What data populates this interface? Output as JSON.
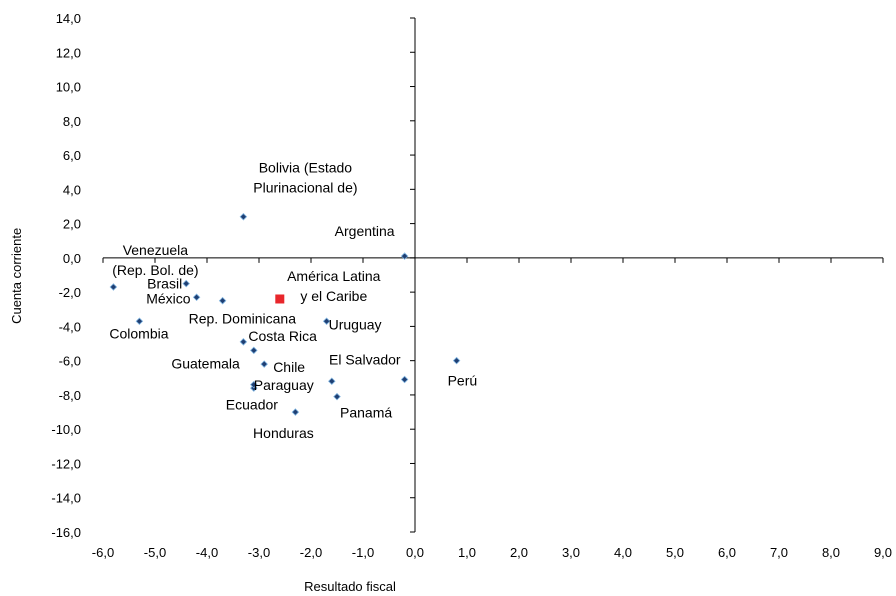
{
  "chart_data": {
    "type": "scatter",
    "xlabel": "Resultado fiscal",
    "ylabel": "Cuenta corriente",
    "xlim": [
      -6,
      9
    ],
    "ylim": [
      -16,
      14
    ],
    "x_ticks": [
      "-6,0",
      "-5,0",
      "-4,0",
      "-3,0",
      "-2,0",
      "-1,0",
      "0,0",
      "1,0",
      "2,0",
      "3,0",
      "4,0",
      "5,0",
      "6,0",
      "7,0",
      "8,0",
      "9,0"
    ],
    "y_ticks": [
      "14,0",
      "12,0",
      "10,0",
      "8,0",
      "6,0",
      "4,0",
      "2,0",
      "0,0",
      "-2,0",
      "-4,0",
      "-6,0",
      "-8,0",
      "-10,0",
      "-12,0",
      "-14,0",
      "-16,0"
    ],
    "grid": false,
    "series": [
      {
        "marker": "diamond",
        "color": "#1f3f73",
        "points": [
          {
            "label": [
              "Bolivia (Estado",
              "Plurinacional de)"
            ],
            "x": -3.3,
            "y": 2.4
          },
          {
            "label": [
              "Argentina"
            ],
            "x": -0.2,
            "y": 0.1
          },
          {
            "label": [
              "Venezuela",
              "(Rep. Bol. de)"
            ],
            "x": -5.8,
            "y": -1.7
          },
          {
            "label": [
              "Brasil"
            ],
            "x": -4.4,
            "y": -1.5
          },
          {
            "label": [
              "México"
            ],
            "x": -4.2,
            "y": -2.3
          },
          {
            "label": [
              "Rep. Dominicana"
            ],
            "x": -3.7,
            "y": -2.5
          },
          {
            "label": [
              "Uruguay"
            ],
            "x": -1.7,
            "y": -3.7
          },
          {
            "label": [
              "Colombia"
            ],
            "x": -5.3,
            "y": -3.7
          },
          {
            "label": [
              "Costa Rica"
            ],
            "x": -3.3,
            "y": -4.9
          },
          {
            "label": [
              "Guatemala"
            ],
            "x": -3.1,
            "y": -5.4
          },
          {
            "label": [
              "Chile"
            ],
            "x": -2.9,
            "y": -6.2
          },
          {
            "label": [
              "El Salvador"
            ],
            "x": -0.2,
            "y": -7.1
          },
          {
            "label": [
              "Perú"
            ],
            "x": 0.8,
            "y": -6.0
          },
          {
            "label": [
              "Paraguay"
            ],
            "x": -3.1,
            "y": -7.6
          },
          {
            "label": [
              ""
            ],
            "x": -1.6,
            "y": -7.2
          },
          {
            "label": [
              "Panamá"
            ],
            "x": -1.5,
            "y": -8.1
          },
          {
            "label": [
              "Ecuador"
            ],
            "x": -3.1,
            "y": -7.4
          },
          {
            "label": [
              "Honduras"
            ],
            "x": -2.3,
            "y": -9.0
          }
        ]
      },
      {
        "marker": "square",
        "color": "#e8262b",
        "points": [
          {
            "label": [
              "América Latina",
              "y el Caribe"
            ],
            "x": -2.6,
            "y": -2.4
          }
        ]
      }
    ]
  }
}
